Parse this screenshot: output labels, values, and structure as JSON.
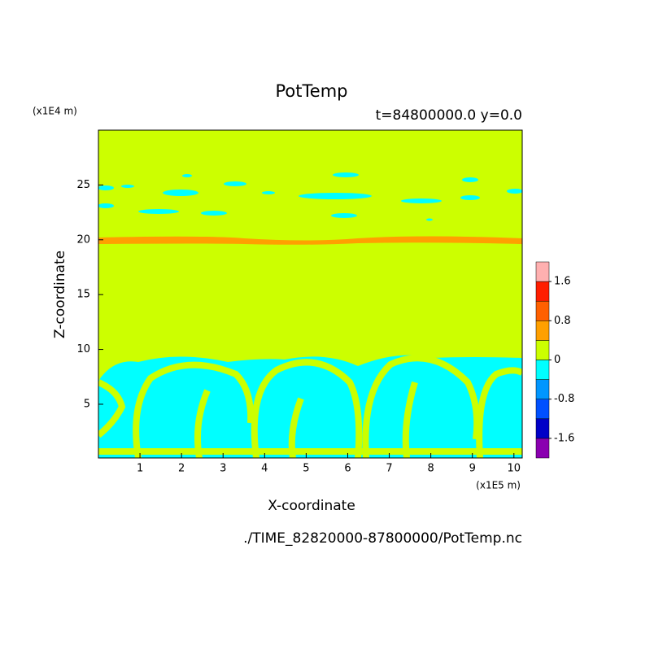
{
  "chart_data": {
    "type": "contour",
    "title": "PotTemp",
    "subtitle": "t=84800000.0 y=0.0",
    "x_label": "X-coordinate",
    "y_label": "Z-coordinate",
    "x_unit": "(x1E5 m)",
    "y_unit": "(x1E4 m)",
    "footer": "./TIME_82820000-87800000/PotTemp.nc",
    "xlim": [
      0,
      10.2
    ],
    "xticks": [
      1,
      2,
      3,
      4,
      5,
      6,
      7,
      8,
      9,
      10
    ],
    "ylim": [
      0.1,
      30
    ],
    "yticks": [
      5,
      10,
      15,
      20,
      25
    ],
    "levels": [
      -2,
      -1.6,
      -1.2,
      -0.8,
      -0.4,
      0,
      0.4,
      0.8,
      1.2,
      1.6,
      2
    ],
    "colors": [
      "#8a00b0",
      "#0000c8",
      "#0050ff",
      "#0096ff",
      "#00ffff",
      "#ccff00",
      "#ffa000",
      "#ff6000",
      "#ff1e00",
      "#ffb0b0"
    ],
    "cticks": [
      -1.6,
      -0.8,
      0,
      0.8,
      1.6
    ]
  }
}
